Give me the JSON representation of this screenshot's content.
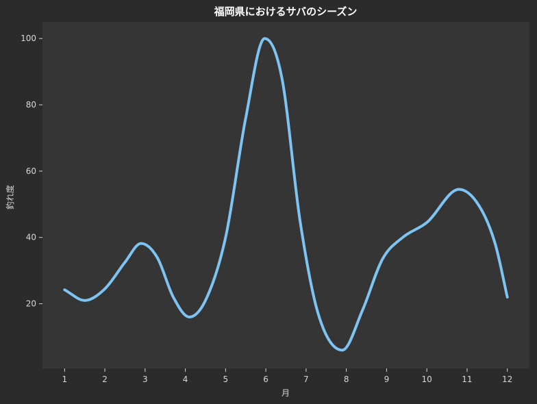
{
  "chart_data": {
    "type": "line",
    "title": "福岡県におけるサバのシーズン",
    "xlabel": "月",
    "ylabel": "釣れ度",
    "x": [
      1,
      2,
      3,
      4,
      5,
      6,
      7,
      8,
      9,
      10,
      11,
      12
    ],
    "xlim": [
      0.45,
      12.55
    ],
    "ylim": [
      0.5,
      105
    ],
    "yticks": [
      20,
      40,
      60,
      80,
      100
    ],
    "series": [
      {
        "color": "#7ec4f2",
        "smooth": true,
        "points": [
          [
            1.0,
            24.2
          ],
          [
            1.5,
            21.0
          ],
          [
            2.0,
            24.5
          ],
          [
            2.5,
            32.5
          ],
          [
            2.9,
            38.2
          ],
          [
            3.3,
            34.0
          ],
          [
            3.7,
            22.0
          ],
          [
            4.1,
            16.0
          ],
          [
            4.5,
            21.0
          ],
          [
            5.0,
            40.0
          ],
          [
            5.5,
            76.0
          ],
          [
            5.97,
            100.0
          ],
          [
            6.4,
            88.0
          ],
          [
            6.85,
            45.0
          ],
          [
            7.3,
            17.0
          ],
          [
            7.9,
            6.0
          ],
          [
            8.4,
            18.0
          ],
          [
            8.9,
            33.5
          ],
          [
            9.4,
            40.0
          ],
          [
            10.0,
            44.5
          ],
          [
            10.8,
            54.5
          ],
          [
            11.3,
            49.5
          ],
          [
            11.7,
            38.0
          ],
          [
            12.0,
            22.0
          ]
        ]
      }
    ],
    "grid": false,
    "background": "#353535",
    "page_background": "#2b2b2b"
  }
}
